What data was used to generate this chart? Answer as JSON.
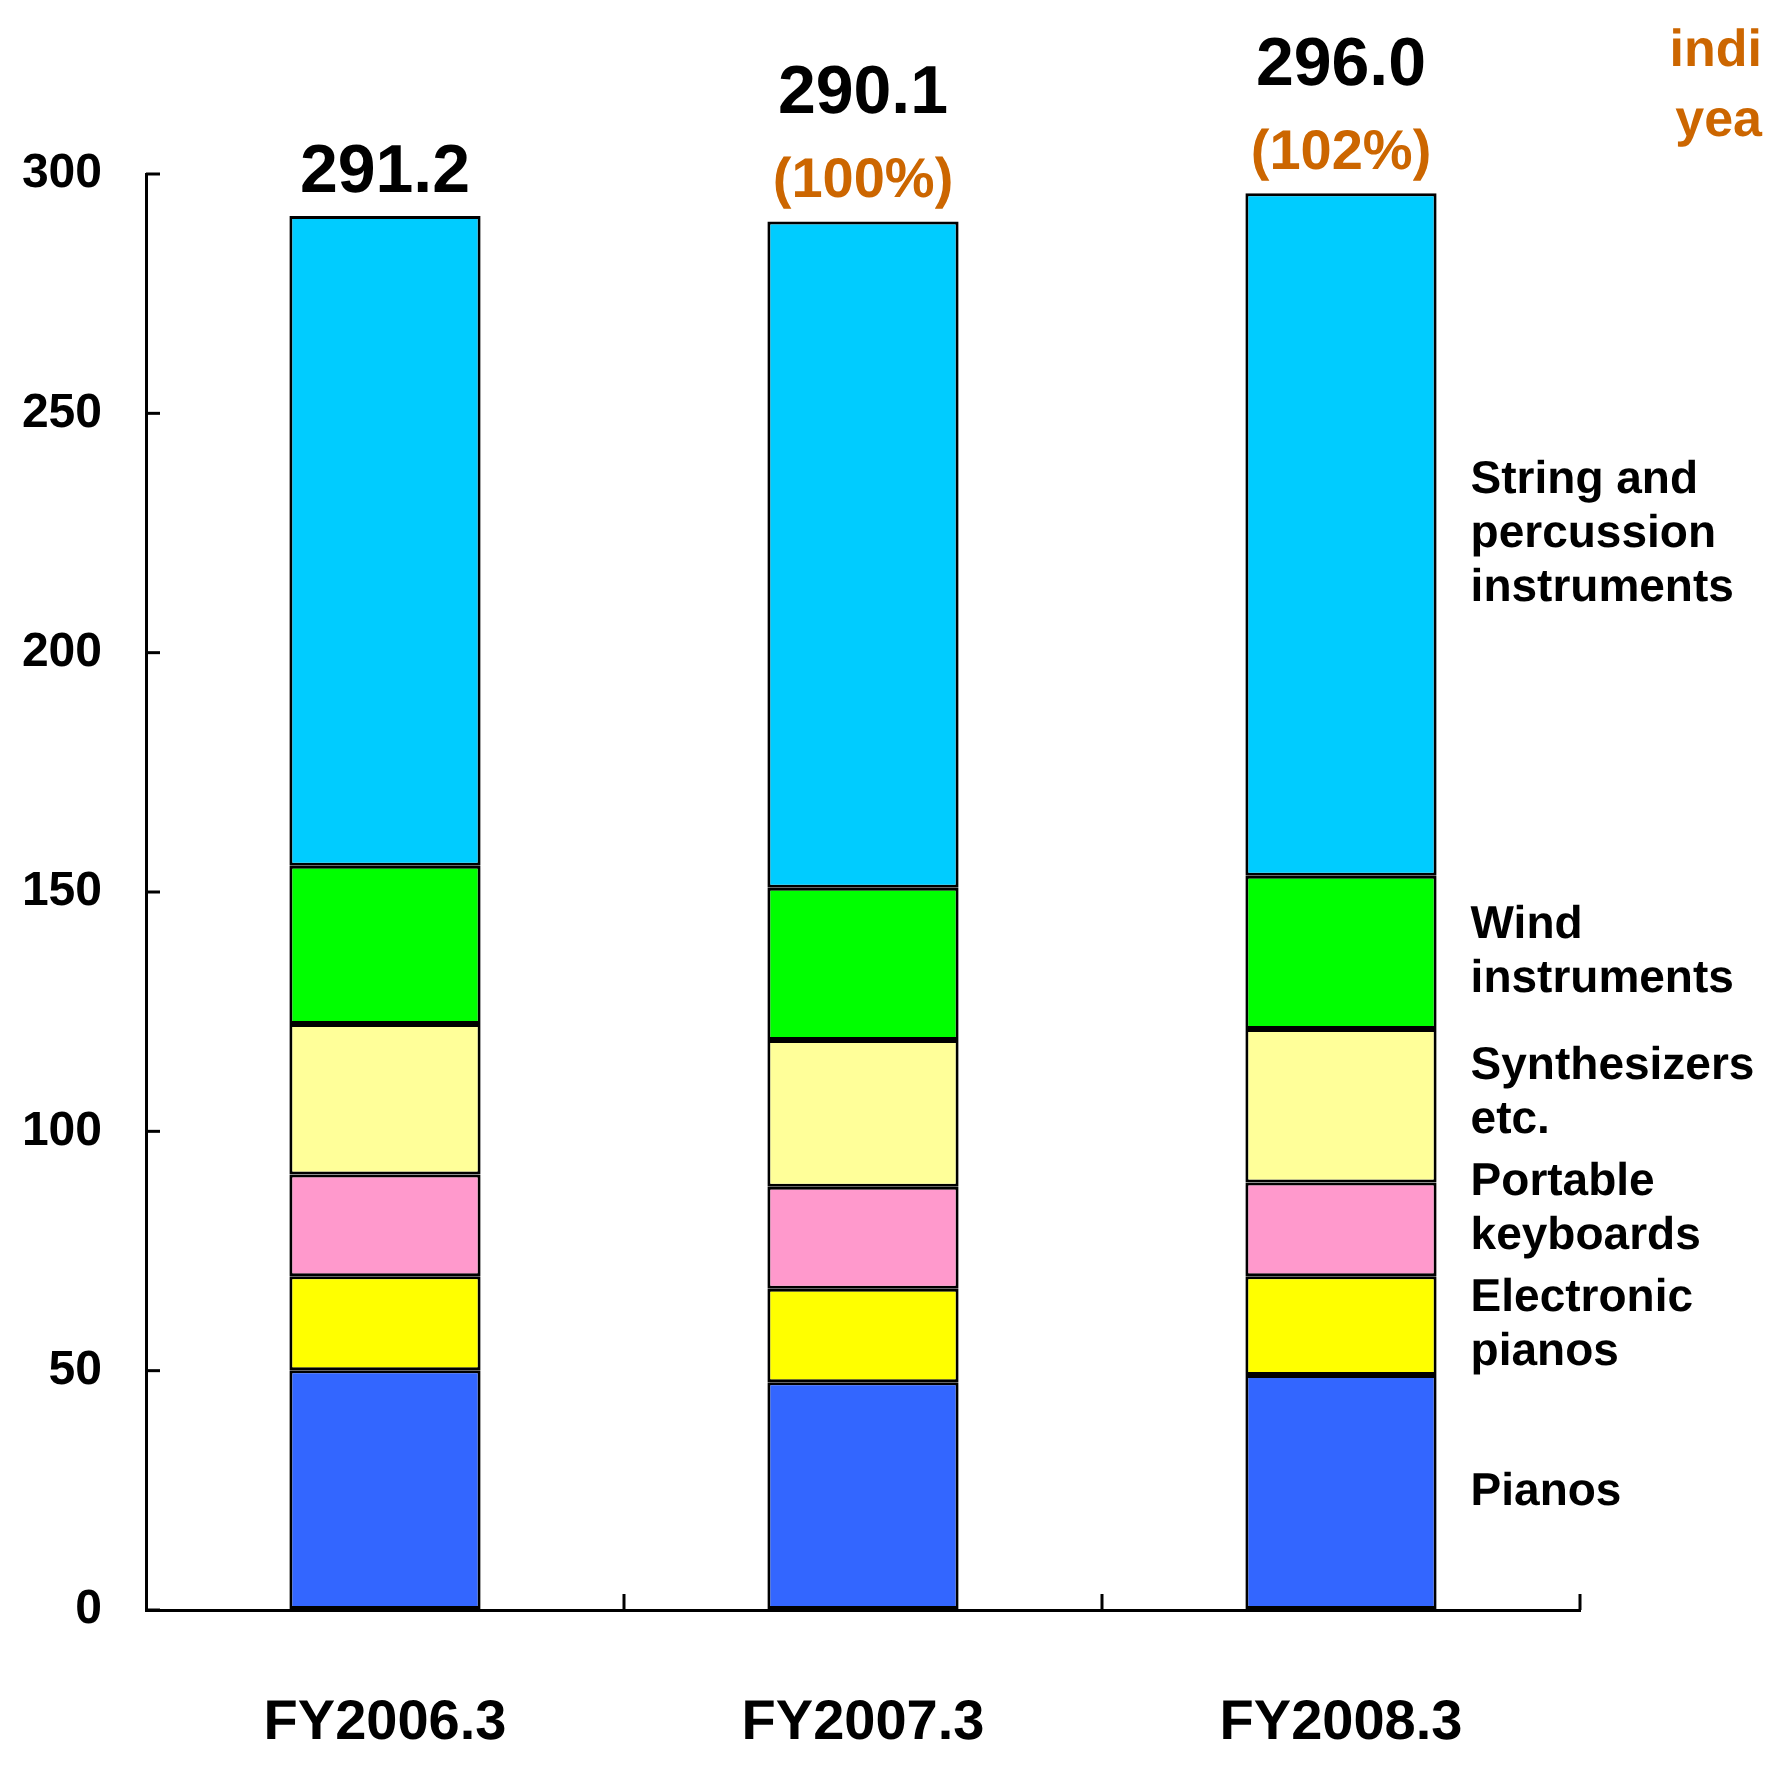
{
  "chart_data": {
    "type": "bar",
    "stacked": true,
    "categories": [
      "FY2006.3",
      "FY2007.3",
      "FY2008.3"
    ],
    "series": [
      {
        "name": "Pianos",
        "color": "#3366ff",
        "values": [
          50.1,
          47.6,
          49.1
        ]
      },
      {
        "name": "Electronic pianos",
        "color": "#ffff00",
        "values": [
          19.6,
          19.5,
          20.6
        ]
      },
      {
        "name": "Portable keyboards",
        "color": "#ff99cc",
        "values": [
          21.3,
          21.3,
          19.6
        ]
      },
      {
        "name": "Synthesizers etc.",
        "color": "#ffff99",
        "values": [
          31.4,
          30.7,
          32.1
        ]
      },
      {
        "name": "Wind instruments",
        "color": "#00ff00",
        "values": [
          33.1,
          31.8,
          32.0
        ]
      },
      {
        "name": "String and percussion instruments",
        "color": "#00ccff",
        "values": [
          135.7,
          139.2,
          142.6
        ]
      }
    ],
    "ylim": [
      0,
      300
    ],
    "yticks": [
      0,
      50,
      100,
      150,
      200,
      250,
      300
    ],
    "totals": [
      "291.2",
      "290.1",
      "296.0"
    ],
    "annotations": [
      {
        "text": "(100%)",
        "x": "FY2007.3",
        "y": 290.1
      },
      {
        "text": "(102%)",
        "x": "FY2008.3",
        "y": 296.0
      },
      "indi",
      "yea"
    ]
  }
}
